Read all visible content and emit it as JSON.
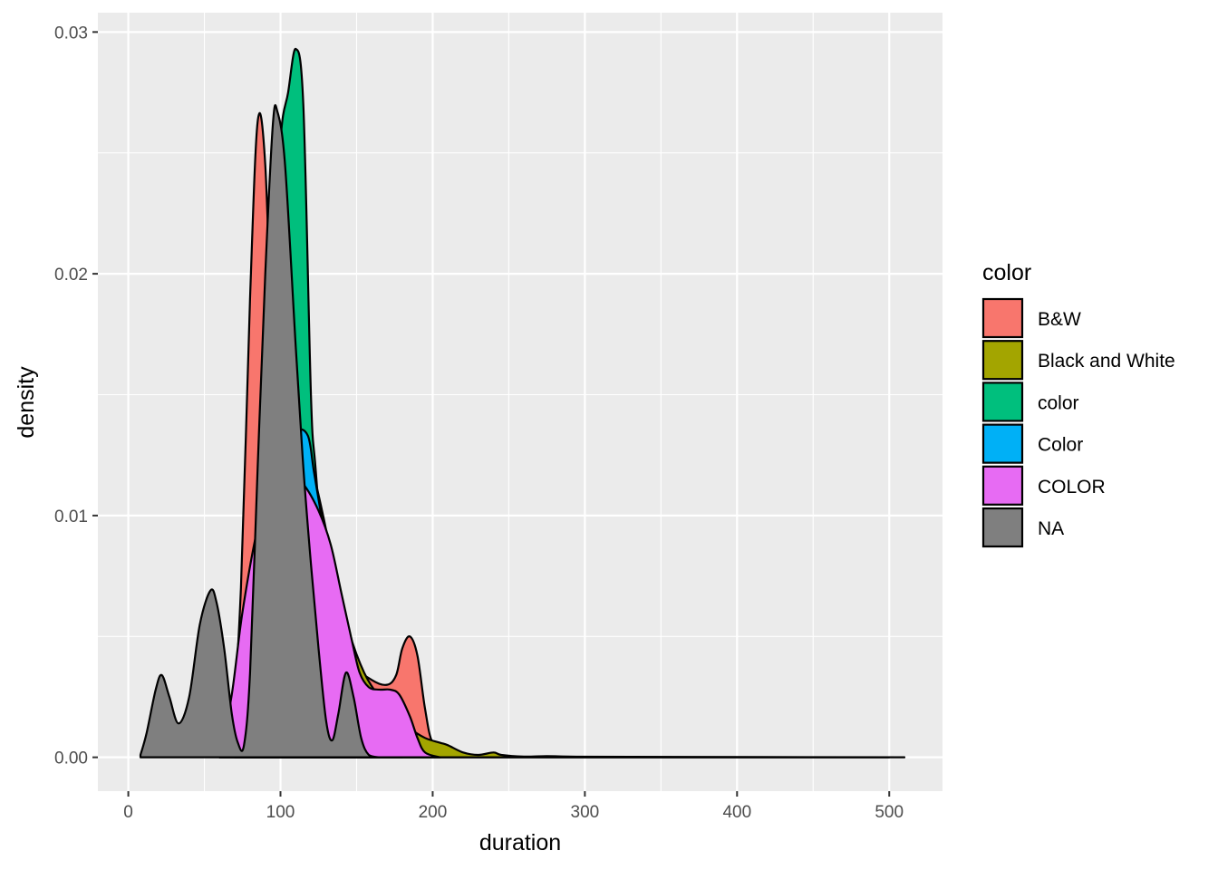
{
  "chart_data": {
    "type": "area",
    "subtype": "density",
    "xlabel": "duration",
    "ylabel": "density",
    "xlim": [
      -20,
      535
    ],
    "ylim": [
      -0.0014,
      0.0308
    ],
    "x_ticks": [
      0,
      100,
      200,
      300,
      400,
      500
    ],
    "y_ticks": [
      0.0,
      0.01,
      0.02,
      0.03
    ],
    "y_tick_labels": [
      "0.00",
      "0.01",
      "0.02",
      "0.03"
    ],
    "grid": true,
    "panel_background": "#ebebeb",
    "legend": {
      "title": "color",
      "placement": "right"
    },
    "series": [
      {
        "name": "B&W",
        "fill": "#F8766D",
        "points": [
          [
            60,
            0
          ],
          [
            68,
            0.0015
          ],
          [
            74,
            0.007
          ],
          [
            80,
            0.019
          ],
          [
            85,
            0.0263
          ],
          [
            90,
            0.0245
          ],
          [
            95,
            0.016
          ],
          [
            100,
            0.012
          ],
          [
            110,
            0.0105
          ],
          [
            120,
            0.0095
          ],
          [
            130,
            0.0075
          ],
          [
            140,
            0.0055
          ],
          [
            150,
            0.0038
          ],
          [
            160,
            0.0032
          ],
          [
            170,
            0.003
          ],
          [
            176,
            0.0034
          ],
          [
            180,
            0.0045
          ],
          [
            185,
            0.005
          ],
          [
            190,
            0.0042
          ],
          [
            195,
            0.002
          ],
          [
            200,
            0.0006
          ],
          [
            210,
            0.0002
          ],
          [
            225,
            0
          ],
          [
            500,
            0
          ]
        ]
      },
      {
        "name": "Black and White",
        "fill": "#A3A500",
        "points": [
          [
            60,
            0
          ],
          [
            70,
            0.002
          ],
          [
            80,
            0.0065
          ],
          [
            90,
            0.0105
          ],
          [
            100,
            0.0125
          ],
          [
            110,
            0.0128
          ],
          [
            120,
            0.012
          ],
          [
            128,
            0.01
          ],
          [
            136,
            0.0075
          ],
          [
            145,
            0.0052
          ],
          [
            155,
            0.0035
          ],
          [
            165,
            0.0025
          ],
          [
            175,
            0.0018
          ],
          [
            185,
            0.0012
          ],
          [
            195,
            0.0008
          ],
          [
            205,
            0.0006
          ],
          [
            210,
            0.0005
          ],
          [
            220,
            0.0002
          ],
          [
            230,
            0.0001
          ],
          [
            240,
            0.0002
          ],
          [
            245,
            0.0001
          ],
          [
            260,
            3e-05
          ],
          [
            275,
            5e-05
          ],
          [
            290,
            3e-05
          ],
          [
            330,
            2e-05
          ],
          [
            510,
            0
          ]
        ]
      },
      {
        "name": "color",
        "fill": "#00BF7D",
        "points": [
          [
            70,
            0
          ],
          [
            80,
            0.001
          ],
          [
            88,
            0.006
          ],
          [
            95,
            0.0185
          ],
          [
            100,
            0.0255
          ],
          [
            105,
            0.0275
          ],
          [
            110,
            0.0293
          ],
          [
            115,
            0.027
          ],
          [
            120,
            0.015
          ],
          [
            123,
            0.012
          ],
          [
            130,
            0.007
          ],
          [
            140,
            0.003
          ],
          [
            150,
            0.0008
          ],
          [
            160,
            0
          ]
        ]
      },
      {
        "name": "Color",
        "fill": "#00B0F6",
        "points": [
          [
            70,
            0
          ],
          [
            80,
            0.0025
          ],
          [
            90,
            0.008
          ],
          [
            100,
            0.0125
          ],
          [
            110,
            0.0135
          ],
          [
            118,
            0.0133
          ],
          [
            122,
            0.0118
          ],
          [
            128,
            0.0095
          ],
          [
            135,
            0.0065
          ],
          [
            142,
            0.004
          ],
          [
            150,
            0.0022
          ],
          [
            160,
            0.001
          ],
          [
            170,
            0.0003
          ],
          [
            180,
            0
          ]
        ]
      },
      {
        "name": "COLOR",
        "fill": "#E76BF3",
        "points": [
          [
            60,
            0
          ],
          [
            68,
            0.0026
          ],
          [
            75,
            0.006
          ],
          [
            85,
            0.0095
          ],
          [
            95,
            0.0115
          ],
          [
            105,
            0.0118
          ],
          [
            115,
            0.0113
          ],
          [
            125,
            0.0102
          ],
          [
            133,
            0.0088
          ],
          [
            140,
            0.0068
          ],
          [
            147,
            0.0048
          ],
          [
            152,
            0.0035
          ],
          [
            158,
            0.0029
          ],
          [
            165,
            0.0028
          ],
          [
            172,
            0.0028
          ],
          [
            178,
            0.0026
          ],
          [
            185,
            0.0017
          ],
          [
            190,
            0.0008
          ],
          [
            195,
            0.0002
          ],
          [
            205,
            0
          ]
        ]
      },
      {
        "name": "NA",
        "fill": "#7F7F7F",
        "points": [
          [
            8,
            0.0001
          ],
          [
            12,
            0.001
          ],
          [
            18,
            0.0028
          ],
          [
            22,
            0.0034
          ],
          [
            27,
            0.0025
          ],
          [
            33,
            0.0014
          ],
          [
            40,
            0.0025
          ],
          [
            47,
            0.0055
          ],
          [
            54,
            0.0069
          ],
          [
            58,
            0.0064
          ],
          [
            63,
            0.0045
          ],
          [
            68,
            0.0018
          ],
          [
            72,
            0.0006
          ],
          [
            76,
            0.0005
          ],
          [
            80,
            0.0035
          ],
          [
            85,
            0.012
          ],
          [
            90,
            0.02
          ],
          [
            95,
            0.0262
          ],
          [
            98,
            0.0267
          ],
          [
            103,
            0.0245
          ],
          [
            110,
            0.017
          ],
          [
            115,
            0.012
          ],
          [
            120,
            0.008
          ],
          [
            125,
            0.0045
          ],
          [
            130,
            0.0015
          ],
          [
            134,
            0.0007
          ],
          [
            138,
            0.0018
          ],
          [
            143,
            0.0035
          ],
          [
            148,
            0.0025
          ],
          [
            153,
            0.0008
          ],
          [
            158,
            0.0001
          ],
          [
            165,
            0
          ]
        ]
      }
    ]
  }
}
